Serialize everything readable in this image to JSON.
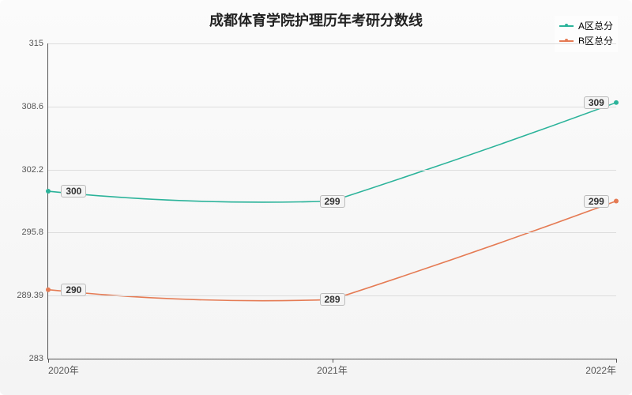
{
  "chart": {
    "type": "line",
    "title": "成都体育学院护理历年考研分数线",
    "title_fontsize": 18,
    "background_gradient": [
      "#fbfbfb",
      "#f4f4f4"
    ],
    "plot_border_color": "#555555",
    "grid_color": "#dddddd",
    "label_text_color": "#555555",
    "x": {
      "categories": [
        "2020年",
        "2021年",
        "2022年"
      ],
      "positions_pct": [
        0,
        50,
        100
      ]
    },
    "y": {
      "min": 283,
      "max": 315,
      "ticks": [
        283,
        289.39,
        295.8,
        302.2,
        308.6,
        315
      ],
      "tick_labels": [
        "283",
        "289.39",
        "295.8",
        "302.2",
        "308.6",
        "315"
      ]
    },
    "series": [
      {
        "name": "A区总分",
        "color": "#2bb39a",
        "line_width": 1.6,
        "marker": "circle",
        "values": [
          300,
          299,
          309
        ],
        "labels": [
          "300",
          "299",
          "309"
        ]
      },
      {
        "name": "B区总分",
        "color": "#e57b54",
        "line_width": 1.6,
        "marker": "circle",
        "values": [
          290,
          289,
          299
        ],
        "labels": [
          "290",
          "289",
          "299"
        ]
      }
    ],
    "legend": {
      "position": "top-right",
      "fontsize": 12
    },
    "data_label_style": {
      "fontsize": 12,
      "bg": "#f4f4f4",
      "border": "#bbbbbb",
      "text": "#333333"
    }
  }
}
